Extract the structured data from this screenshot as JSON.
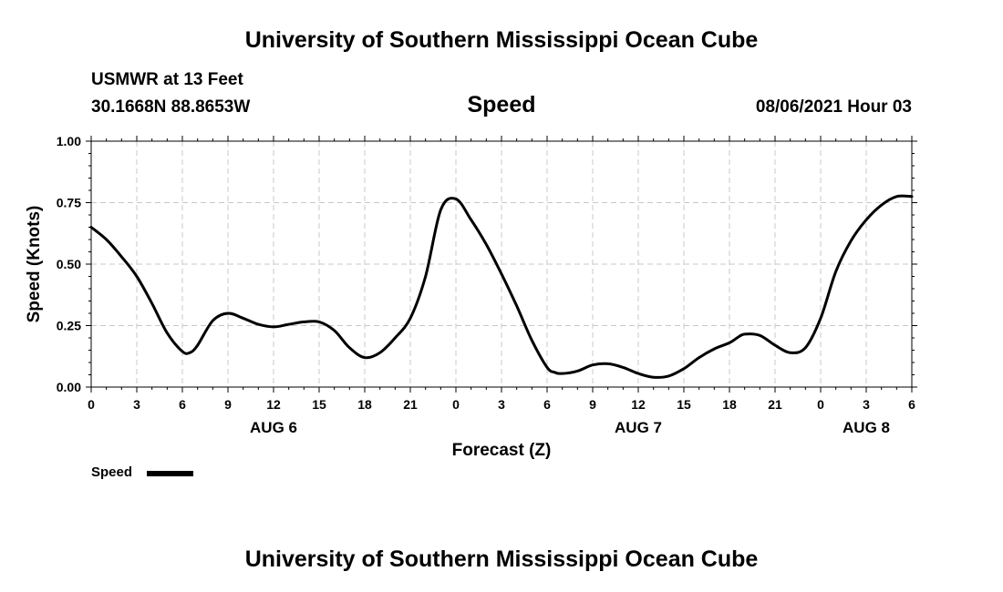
{
  "header": {
    "title": "University of Southern Mississippi Ocean Cube",
    "station": "USMWR at 13 Feet",
    "coords": "30.1668N  88.8653W",
    "datetime": "08/06/2021 Hour 03"
  },
  "footer": {
    "title": "University of Southern Mississippi Ocean Cube"
  },
  "chart_data": {
    "type": "line",
    "title": "Speed",
    "xlabel": "Forecast (Z)",
    "ylabel": "Speed (Knots)",
    "ylim": [
      0,
      1
    ],
    "xlim": [
      0,
      54
    ],
    "x_unit": "hours from 0Z Aug 6",
    "yticks": [
      "0.00",
      "0.25",
      "0.50",
      "0.75",
      "1.00"
    ],
    "yticks_values": [
      0,
      0.25,
      0.5,
      0.75,
      1.0
    ],
    "xticks": [
      "0",
      "3",
      "6",
      "9",
      "12",
      "15",
      "18",
      "21",
      "0",
      "3",
      "6",
      "9",
      "12",
      "15",
      "18",
      "21",
      "0",
      "3",
      "6"
    ],
    "day_labels": [
      {
        "label": "AUG 6",
        "at": 12
      },
      {
        "label": "AUG 7",
        "at": 36
      },
      {
        "label": "AUG 8",
        "at": 51
      }
    ],
    "grid": true,
    "legend": "bottom-left",
    "color": "#000000",
    "series": [
      {
        "name": "Speed",
        "x": [
          0,
          1,
          2,
          3,
          4,
          5,
          6,
          6.5,
          7,
          8,
          9,
          10,
          11,
          12,
          13,
          14,
          15,
          16,
          17,
          18,
          19,
          20,
          21,
          22,
          23,
          24,
          25,
          26,
          27,
          28,
          29,
          30,
          30.5,
          31,
          32,
          33,
          34,
          35,
          36,
          37,
          38,
          39,
          40,
          41,
          42,
          42.5,
          43,
          44,
          45,
          46,
          47,
          48,
          49,
          50,
          51,
          52,
          53,
          54
        ],
        "y": [
          0.65,
          0.6,
          0.53,
          0.45,
          0.34,
          0.22,
          0.145,
          0.14,
          0.17,
          0.27,
          0.3,
          0.28,
          0.255,
          0.245,
          0.255,
          0.265,
          0.265,
          0.23,
          0.16,
          0.12,
          0.14,
          0.2,
          0.28,
          0.45,
          0.72,
          0.765,
          0.68,
          0.58,
          0.46,
          0.33,
          0.19,
          0.08,
          0.06,
          0.055,
          0.065,
          0.09,
          0.095,
          0.08,
          0.055,
          0.04,
          0.045,
          0.075,
          0.12,
          0.155,
          0.18,
          0.2,
          0.215,
          0.21,
          0.17,
          0.14,
          0.16,
          0.28,
          0.47,
          0.595,
          0.68,
          0.74,
          0.775,
          0.775
        ]
      }
    ]
  }
}
